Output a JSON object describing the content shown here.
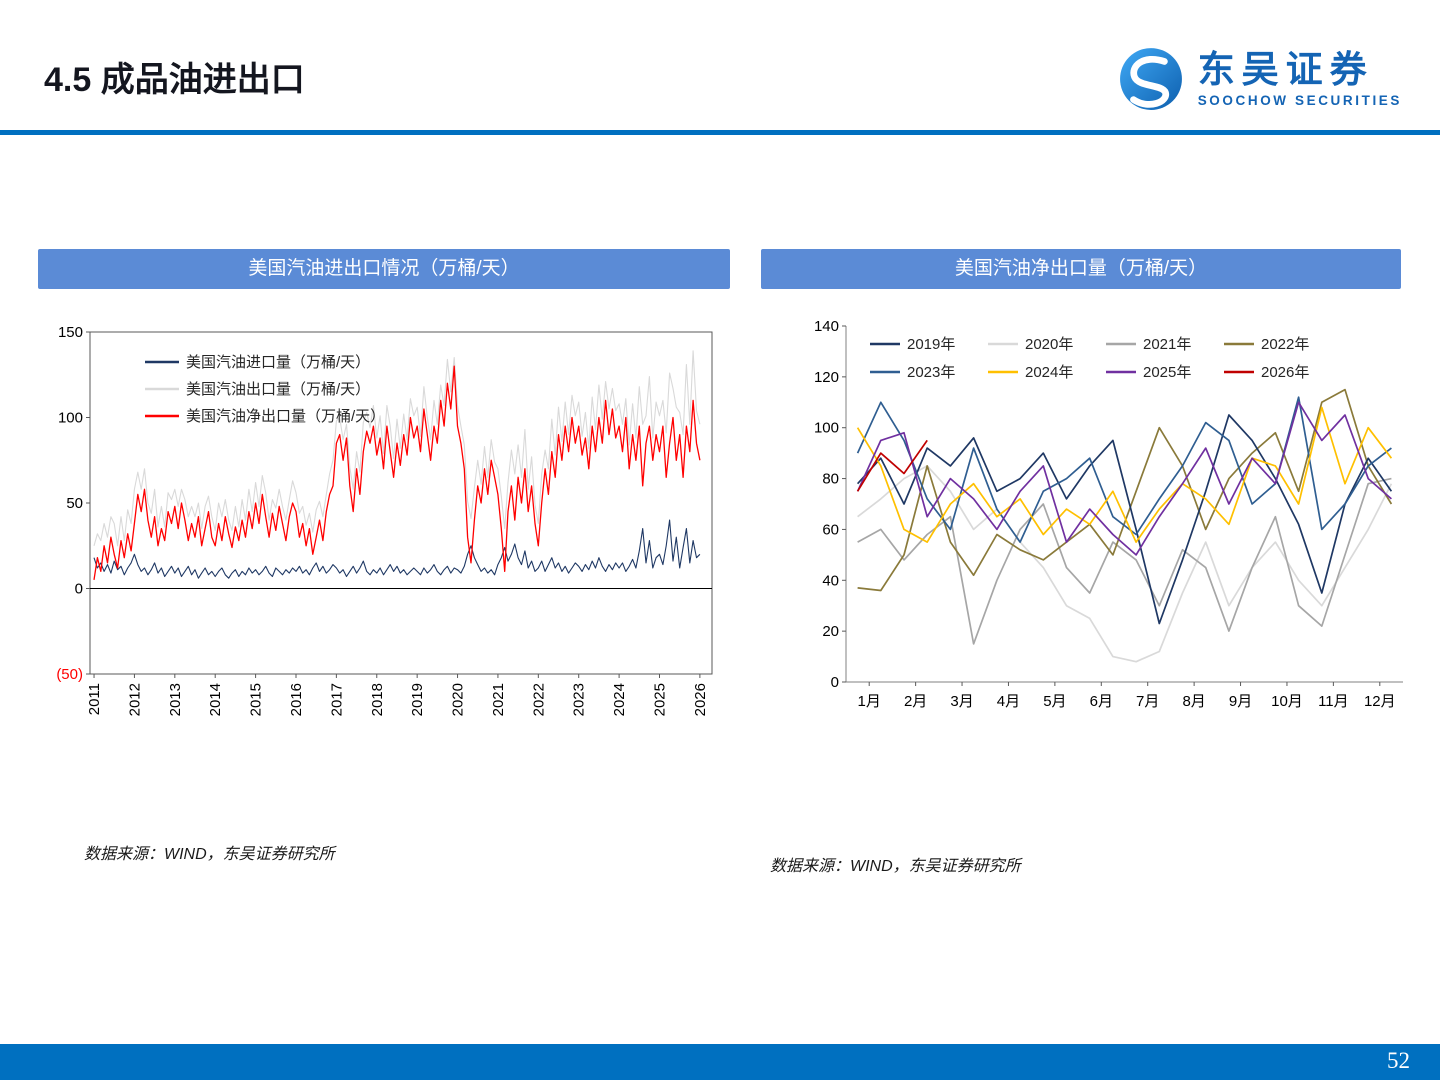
{
  "slide": {
    "title": "4.5 成品油进出口",
    "page_number": "52",
    "logo": {
      "brand_cn": "东吴证券",
      "brand_en": "SOOCHOW SECURITIES"
    }
  },
  "colors": {
    "accent_blue": "#0070C0",
    "panel_header_blue": "#5B8BD6",
    "brand_blue": "#1464B4",
    "footer_blue": "#0070C0",
    "negative_tick_red": "#FF0000"
  },
  "left_panel": {
    "header": "美国汽油进出口情况（万桶/天）",
    "source": "数据来源：WIND，东吴证券研究所"
  },
  "right_panel": {
    "header": "美国汽油净出口量（万桶/天）",
    "source": "数据来源：WIND，东吴证券研究所"
  },
  "chart_data": [
    {
      "type": "line",
      "title": "美国汽油进出口情况（万桶/天）",
      "xlabel": "",
      "ylabel": "",
      "xlim": [
        2010.9,
        2026.3
      ],
      "ylim": [
        -50,
        150
      ],
      "x_ticks": [
        "2011",
        "2012",
        "2013",
        "2014",
        "2015",
        "2016",
        "2017",
        "2018",
        "2019",
        "2020",
        "2021",
        "2022",
        "2023",
        "2024",
        "2025",
        "2026"
      ],
      "x_tick_values": [
        2011,
        2012,
        2013,
        2014,
        2015,
        2016,
        2017,
        2018,
        2019,
        2020,
        2021,
        2022,
        2023,
        2024,
        2025,
        2026
      ],
      "y_ticks": [
        150,
        100,
        50,
        0,
        -50
      ],
      "y_tick_labels": [
        "150",
        "100",
        "50",
        "0",
        "(50)"
      ],
      "y_tick_colors": [
        null,
        null,
        null,
        null,
        "#FF0000"
      ],
      "x_start": 2011,
      "x_step": 0.083333,
      "draw_order": [
        1,
        0,
        2
      ],
      "grid": false,
      "legend_position": "inside-top-left",
      "series": [
        {
          "name": "美国汽油进口量（万桶/天）",
          "color": "#1F3864",
          "line_width": 1.1,
          "values": [
            18,
            12,
            15,
            10,
            14,
            9,
            16,
            11,
            13,
            8,
            12,
            15,
            20,
            14,
            10,
            12,
            8,
            11,
            15,
            9,
            12,
            7,
            10,
            13,
            9,
            12,
            7,
            10,
            13,
            8,
            11,
            6,
            9,
            12,
            8,
            10,
            7,
            10,
            12,
            8,
            6,
            9,
            11,
            7,
            10,
            8,
            12,
            9,
            11,
            8,
            10,
            13,
            9,
            7,
            12,
            10,
            8,
            11,
            9,
            12,
            10,
            13,
            9,
            11,
            8,
            12,
            15,
            10,
            13,
            9,
            11,
            14,
            12,
            9,
            11,
            7,
            10,
            13,
            9,
            12,
            16,
            10,
            8,
            11,
            9,
            12,
            8,
            11,
            14,
            10,
            13,
            9,
            11,
            8,
            10,
            12,
            10,
            8,
            12,
            9,
            11,
            14,
            10,
            8,
            11,
            13,
            9,
            12,
            11,
            9,
            13,
            20,
            25,
            18,
            14,
            10,
            12,
            9,
            11,
            8,
            14,
            18,
            24,
            16,
            20,
            26,
            18,
            14,
            22,
            12,
            16,
            10,
            12,
            16,
            10,
            14,
            18,
            12,
            15,
            10,
            13,
            9,
            12,
            15,
            13,
            10,
            14,
            11,
            16,
            12,
            18,
            13,
            10,
            14,
            11,
            15,
            12,
            15,
            10,
            13,
            17,
            12,
            22,
            35,
            15,
            28,
            12,
            18,
            20,
            14,
            25,
            40,
            16,
            30,
            12,
            24,
            35,
            15,
            28,
            18,
            20
          ]
        },
        {
          "name": "美国汽油出口量（万桶/天）",
          "color": "#D9D9D9",
          "line_width": 1.1,
          "values": [
            25,
            32,
            28,
            38,
            30,
            42,
            38,
            25,
            42,
            28,
            46,
            38,
            58,
            68,
            58,
            70,
            50,
            44,
            58,
            36,
            48,
            36,
            56,
            52,
            58,
            48,
            58,
            52,
            42,
            48,
            42,
            50,
            35,
            48,
            54,
            42,
            34,
            50,
            42,
            52,
            40,
            34,
            48,
            36,
            52,
            40,
            58,
            45,
            62,
            48,
            66,
            56,
            40,
            52,
            47,
            58,
            48,
            40,
            52,
            63,
            56,
            44,
            48,
            37,
            44,
            33,
            46,
            51,
            42,
            55,
            67,
            75,
            98,
            100,
            87,
            96,
            71,
            58,
            80,
            68,
            97,
            103,
            94,
            107,
            88,
            101,
            79,
            107,
            95,
            76,
            99,
            82,
            102,
            87,
            111,
            101,
            106,
            89,
            118,
            100,
            87,
            110,
            96,
            119,
            107,
            134,
            115,
            135,
            107,
            95,
            84,
            51,
            41,
            59,
            75,
            61,
            83,
            65,
            87,
            74,
            70,
            54,
            35,
            62,
            81,
            67,
            84,
            65,
            93,
            58,
            77,
            49,
            38,
            67,
            81,
            70,
            99,
            78,
            106,
            86,
            109,
            90,
            113,
            101,
            109,
            89,
            103,
            82,
            112,
            93,
            119,
            99,
            121,
            105,
            117,
            104,
            108,
            96,
            111,
            84,
            108,
            88,
            118,
            96,
            101,
            124,
            88,
            109,
            101,
            110,
            91,
            126,
            117,
            106,
            103,
            90,
            131,
            96,
            139,
            104,
            96
          ]
        },
        {
          "name": "美国汽油净出口量（万桶/天）",
          "color": "#FF0000",
          "line_width": 1.3,
          "values": [
            5,
            18,
            10,
            25,
            15,
            30,
            20,
            12,
            28,
            18,
            32,
            22,
            38,
            55,
            45,
            58,
            40,
            30,
            42,
            25,
            35,
            28,
            45,
            38,
            48,
            35,
            50,
            40,
            28,
            38,
            30,
            42,
            25,
            35,
            45,
            30,
            25,
            38,
            28,
            42,
            32,
            24,
            36,
            28,
            40,
            30,
            45,
            35,
            50,
            38,
            55,
            42,
            30,
            44,
            34,
            48,
            38,
            28,
            42,
            50,
            45,
            30,
            38,
            25,
            35,
            20,
            30,
            40,
            28,
            45,
            55,
            60,
            85,
            90,
            75,
            88,
            60,
            45,
            70,
            55,
            80,
            92,
            85,
            95,
            78,
            88,
            70,
            95,
            80,
            65,
            85,
            72,
            90,
            78,
            100,
            88,
            95,
            80,
            105,
            90,
            75,
            95,
            85,
            110,
            95,
            120,
            105,
            130,
            95,
            85,
            70,
            30,
            15,
            40,
            60,
            50,
            70,
            55,
            75,
            65,
            55,
            35,
            10,
            45,
            60,
            40,
            65,
            50,
            70,
            45,
            60,
            38,
            25,
            50,
            70,
            55,
            80,
            65,
            90,
            75,
            95,
            80,
            100,
            85,
            95,
            78,
            88,
            70,
            95,
            80,
            100,
            85,
            110,
            90,
            105,
            88,
            95,
            80,
            100,
            70,
            90,
            75,
            95,
            60,
            85,
            95,
            75,
            90,
            80,
            95,
            65,
            85,
            100,
            75,
            90,
            65,
            95,
            80,
            110,
            85,
            75
          ]
        }
      ]
    },
    {
      "type": "line",
      "title": "美国汽油净出口量（万桶/天）",
      "xlabel": "",
      "ylabel": "",
      "xlim": [
        0,
        12
      ],
      "ylim": [
        0,
        140
      ],
      "x_ticks": [
        "1月",
        "2月",
        "3月",
        "4月",
        "5月",
        "6月",
        "7月",
        "8月",
        "9月",
        "10月",
        "11月",
        "12月"
      ],
      "x_tick_values": [
        0.5,
        1.5,
        2.5,
        3.5,
        4.5,
        5.5,
        6.5,
        7.5,
        8.5,
        9.5,
        10.5,
        11.5
      ],
      "y_ticks": [
        0,
        20,
        40,
        60,
        80,
        100,
        120,
        140
      ],
      "y_tick_labels": [
        "0",
        "20",
        "40",
        "60",
        "80",
        "100",
        "120",
        "140"
      ],
      "x_start": 0.25,
      "x_step": 0.5,
      "draw_order": [
        1,
        2,
        3,
        0,
        4,
        5,
        6,
        7
      ],
      "grid": false,
      "legend_position": "inside-top",
      "series": [
        {
          "name": "2019年",
          "color": "#1F3864",
          "line_width": 1.7,
          "values": [
            78,
            88,
            70,
            92,
            85,
            96,
            75,
            80,
            90,
            72,
            85,
            95,
            60,
            23,
            48,
            75,
            105,
            95,
            80,
            62,
            35,
            70,
            88,
            75
          ]
        },
        {
          "name": "2020年",
          "color": "#D9D9D9",
          "line_width": 1.7,
          "values": [
            65,
            72,
            80,
            85,
            75,
            60,
            68,
            55,
            45,
            30,
            25,
            10,
            8,
            12,
            35,
            55,
            30,
            45,
            55,
            40,
            30,
            45,
            60,
            78
          ]
        },
        {
          "name": "2021年",
          "color": "#A6A6A6",
          "line_width": 1.7,
          "values": [
            55,
            60,
            48,
            58,
            65,
            15,
            40,
            60,
            70,
            45,
            35,
            55,
            48,
            30,
            52,
            45,
            20,
            45,
            65,
            30,
            22,
            50,
            78,
            80
          ]
        },
        {
          "name": "2022年",
          "color": "#8A7A3A",
          "line_width": 1.7,
          "values": [
            37,
            36,
            50,
            85,
            55,
            42,
            58,
            52,
            48,
            55,
            62,
            50,
            75,
            100,
            85,
            60,
            80,
            90,
            98,
            75,
            110,
            115,
            85,
            70
          ]
        },
        {
          "name": "2023年",
          "color": "#2F5E91",
          "line_width": 1.7,
          "values": [
            90,
            110,
            95,
            72,
            60,
            92,
            68,
            55,
            75,
            80,
            88,
            65,
            58,
            72,
            85,
            102,
            95,
            70,
            78,
            112,
            60,
            70,
            85,
            92
          ]
        },
        {
          "name": "2024年",
          "color": "#FFC000",
          "line_width": 1.7,
          "values": [
            100,
            85,
            60,
            55,
            70,
            78,
            65,
            72,
            58,
            68,
            62,
            75,
            55,
            68,
            78,
            72,
            62,
            88,
            85,
            70,
            108,
            78,
            100,
            88
          ]
        },
        {
          "name": "2025年",
          "color": "#7030A0",
          "line_width": 1.7,
          "values": [
            75,
            95,
            98,
            65,
            80,
            72,
            60,
            75,
            85,
            55,
            68,
            58,
            50,
            65,
            78,
            92,
            70,
            88,
            78,
            110,
            95,
            105,
            80,
            72
          ]
        },
        {
          "name": "2026年",
          "color": "#C00000",
          "line_width": 1.7,
          "values": [
            75,
            90,
            82,
            95
          ]
        }
      ]
    }
  ]
}
